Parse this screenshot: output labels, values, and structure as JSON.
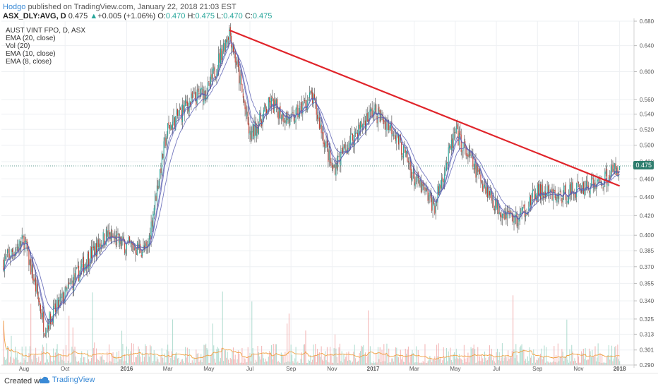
{
  "header": {
    "author": "Hodgo",
    "published_text": " published on TradingView.com, January 22, 2018 21:03 EST",
    "symbol": "ASX_DLY:AVG, D",
    "price": "0.475",
    "up_arrow": "▲",
    "change": "+0.005 (+1.06%)",
    "o_label": "O:",
    "o_value": "0.470",
    "h_label": "H:",
    "h_value": "0.475",
    "l_label": "L:",
    "l_value": "0.470",
    "c_label": "C:",
    "c_value": "0.475"
  },
  "legend": {
    "name": "AUST VINT FPO, D, ASX",
    "items": [
      "EMA (20, close)",
      "Vol (20)",
      "EMA (10, close)",
      "EMA (8, close)"
    ]
  },
  "footer": {
    "created": "Created with",
    "brand": "TradingView",
    "logo_icon": "tradingview-cloud-icon"
  },
  "colors": {
    "up": "#26a69a",
    "down": "#c0392b",
    "ema": "#5b5fb3",
    "trendline": "#e0242a",
    "vol_up": "#9fd5c5",
    "vol_down": "#f0a5a5",
    "vol_ma": "#f0a040"
  },
  "chart_data": {
    "type": "candlestick",
    "y_axis_ticks": [
      "0.680",
      "0.640",
      "0.600",
      "0.560",
      "0.540",
      "0.520",
      "0.500",
      "0.480",
      "0.460",
      "0.440",
      "0.420",
      "0.400",
      "0.385",
      "0.370",
      "0.355",
      "0.340",
      "0.325",
      "0.313",
      "0.301",
      "0.290"
    ],
    "ylim": [
      0.29,
      0.68
    ],
    "y_scale": "log",
    "last_price_tag": "0.475",
    "x_axis_ticks": [
      "Aug",
      "Oct",
      "2016",
      "Mar",
      "May",
      "Jul",
      "Sep",
      "Nov",
      "2017",
      "Mar",
      "May",
      "Jul",
      "Sep",
      "Nov",
      "2018"
    ],
    "bold_ticks": [
      "2016",
      "2017",
      "2018"
    ],
    "trendline": {
      "start_date": "2016-06",
      "start_price": 0.665,
      "end_date": "2018-01",
      "end_price": 0.452
    },
    "price_path": [
      [
        "2015-07",
        0.375
      ],
      [
        "2015-08",
        0.395
      ],
      [
        "2015-09",
        0.318
      ],
      [
        "2015-10",
        0.345
      ],
      [
        "2015-11",
        0.375
      ],
      [
        "2015-12",
        0.4
      ],
      [
        "2016-01",
        0.39
      ],
      [
        "2016-02",
        0.385
      ],
      [
        "2016-03",
        0.52
      ],
      [
        "2016-04",
        0.555
      ],
      [
        "2016-05",
        0.575
      ],
      [
        "2016-06",
        0.665
      ],
      [
        "2016-07",
        0.51
      ],
      [
        "2016-08",
        0.555
      ],
      [
        "2016-09",
        0.53
      ],
      [
        "2016-10",
        0.565
      ],
      [
        "2016-11",
        0.47
      ],
      [
        "2016-12",
        0.51
      ],
      [
        "2017-01",
        0.545
      ],
      [
        "2017-02",
        0.52
      ],
      [
        "2017-03",
        0.46
      ],
      [
        "2017-04",
        0.43
      ],
      [
        "2017-05",
        0.515
      ],
      [
        "2017-06",
        0.47
      ],
      [
        "2017-07",
        0.43
      ],
      [
        "2017-08",
        0.415
      ],
      [
        "2017-09",
        0.445
      ],
      [
        "2017-10",
        0.44
      ],
      [
        "2017-11",
        0.45
      ],
      [
        "2017-12",
        0.455
      ],
      [
        "2018-01",
        0.475
      ]
    ]
  }
}
